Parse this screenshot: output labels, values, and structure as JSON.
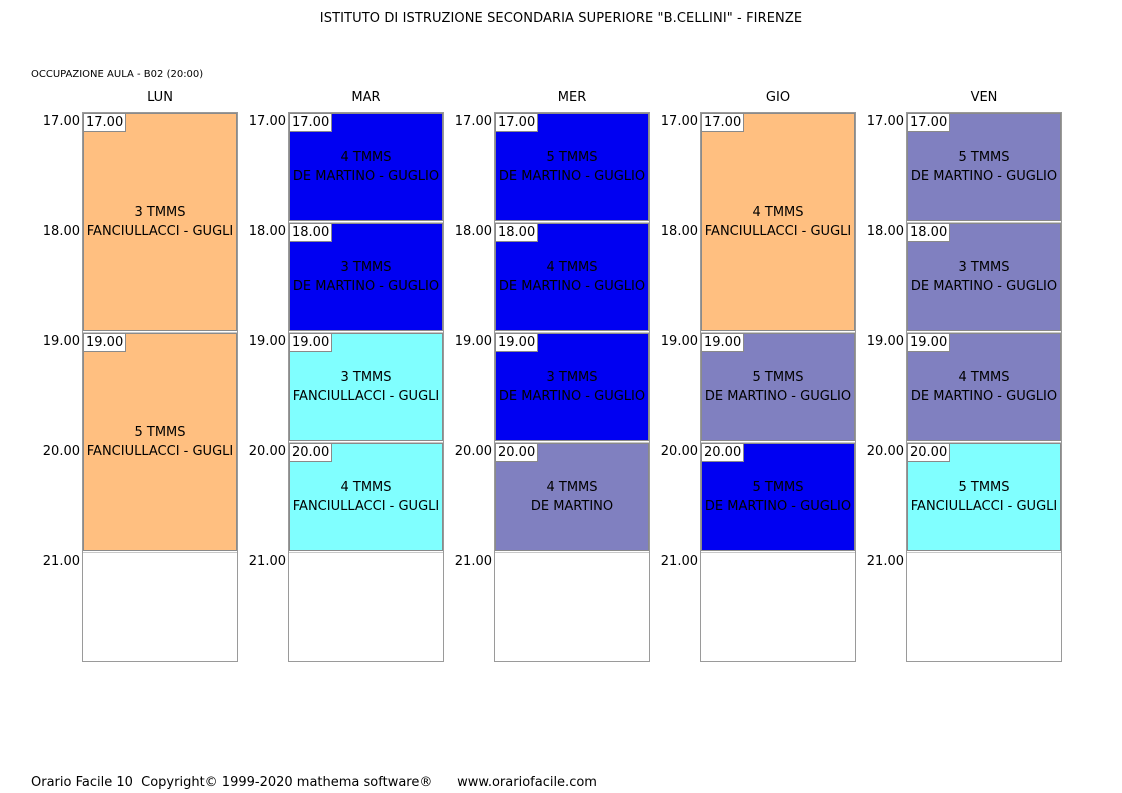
{
  "header": {
    "title": "ISTITUTO DI ISTRUZIONE SECONDARIA SUPERIORE \"B.CELLINI\" - FIRENZE",
    "subtitle": "OCCUPAZIONE AULA   -   B02  (20:00)"
  },
  "colors": {
    "orange": "#FFBF80",
    "blue": "#0000F2",
    "periwinkle": "#8080C0",
    "cyan": "#80FFFF"
  },
  "time_rows": [
    "17.00",
    "18.00",
    "19.00",
    "20.00",
    "21.00"
  ],
  "days": [
    {
      "name": "LUN",
      "blocks": [
        {
          "start": "17.00",
          "span": 2,
          "color": "orange",
          "class": "3 TMMS",
          "teachers": "FANCIULLACCI - GUGLI"
        },
        {
          "start": "19.00",
          "span": 2,
          "color": "orange",
          "class": "5 TMMS",
          "teachers": "FANCIULLACCI - GUGLI"
        }
      ]
    },
    {
      "name": "MAR",
      "blocks": [
        {
          "start": "17.00",
          "span": 1,
          "color": "blue",
          "class": "4 TMMS",
          "teachers": "DE MARTINO - GUGLIO"
        },
        {
          "start": "18.00",
          "span": 1,
          "color": "blue",
          "class": "3 TMMS",
          "teachers": "DE MARTINO - GUGLIO"
        },
        {
          "start": "19.00",
          "span": 1,
          "color": "cyan",
          "class": "3 TMMS",
          "teachers": "FANCIULLACCI - GUGLI"
        },
        {
          "start": "20.00",
          "span": 1,
          "color": "cyan",
          "class": "4 TMMS",
          "teachers": "FANCIULLACCI - GUGLI"
        }
      ]
    },
    {
      "name": "MER",
      "blocks": [
        {
          "start": "17.00",
          "span": 1,
          "color": "blue",
          "class": "5 TMMS",
          "teachers": "DE MARTINO - GUGLIO"
        },
        {
          "start": "18.00",
          "span": 1,
          "color": "blue",
          "class": "4 TMMS",
          "teachers": "DE MARTINO - GUGLIO"
        },
        {
          "start": "19.00",
          "span": 1,
          "color": "blue",
          "class": "3 TMMS",
          "teachers": "DE MARTINO - GUGLIO"
        },
        {
          "start": "20.00",
          "span": 1,
          "color": "periwinkle",
          "class": "4 TMMS",
          "teachers": "DE MARTINO"
        }
      ]
    },
    {
      "name": "GIO",
      "blocks": [
        {
          "start": "17.00",
          "span": 2,
          "color": "orange",
          "class": "4 TMMS",
          "teachers": "FANCIULLACCI - GUGLI"
        },
        {
          "start": "19.00",
          "span": 1,
          "color": "periwinkle",
          "class": "5 TMMS",
          "teachers": "DE MARTINO - GUGLIO"
        },
        {
          "start": "20.00",
          "span": 1,
          "color": "blue",
          "class": "5 TMMS",
          "teachers": "DE MARTINO - GUGLIO"
        }
      ]
    },
    {
      "name": "VEN",
      "blocks": [
        {
          "start": "17.00",
          "span": 1,
          "color": "periwinkle",
          "class": "5 TMMS",
          "teachers": "DE MARTINO - GUGLIO"
        },
        {
          "start": "18.00",
          "span": 1,
          "color": "periwinkle",
          "class": "3 TMMS",
          "teachers": "DE MARTINO - GUGLIO"
        },
        {
          "start": "19.00",
          "span": 1,
          "color": "periwinkle",
          "class": "4 TMMS",
          "teachers": "DE MARTINO - GUGLIO"
        },
        {
          "start": "20.00",
          "span": 1,
          "color": "cyan",
          "class": "5 TMMS",
          "teachers": "FANCIULLACCI - GUGLI"
        }
      ]
    }
  ],
  "footer": {
    "text": "Orario Facile 10  Copyright© 1999-2020 mathema software®      www.orariofacile.com"
  }
}
